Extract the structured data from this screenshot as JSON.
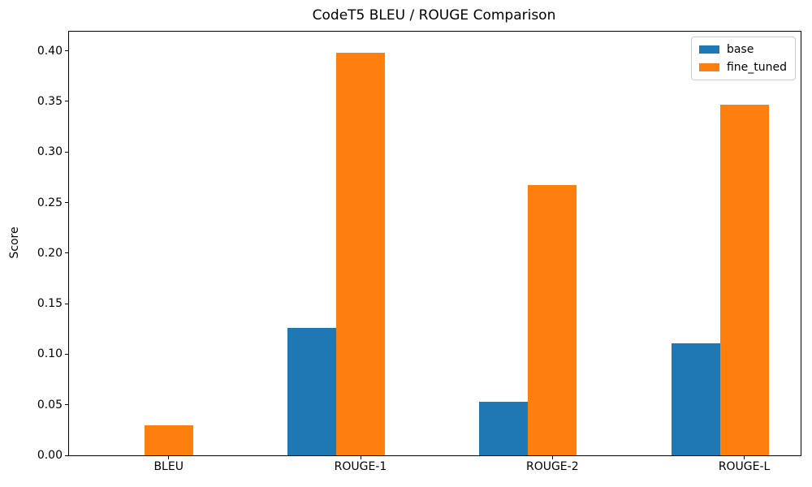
{
  "window": {
    "background": "#ffffff"
  },
  "chart_data": {
    "type": "bar",
    "title": "CodeT5 BLEU / ROUGE Comparison",
    "xlabel": "",
    "ylabel": "Score",
    "categories": [
      "BLEU",
      "ROUGE-1",
      "ROUGE-2",
      "ROUGE-L"
    ],
    "series": [
      {
        "name": "base",
        "color": "#1f77b4",
        "values": [
          0.0,
          0.126,
          0.053,
          0.111
        ]
      },
      {
        "name": "fine_tuned",
        "color": "#ff7f0e",
        "values": [
          0.03,
          0.398,
          0.267,
          0.347
        ]
      }
    ],
    "ylim": [
      0,
      0.419
    ],
    "yticks": [
      0.0,
      0.05,
      0.1,
      0.15,
      0.2,
      0.25,
      0.3,
      0.35,
      0.4
    ],
    "ytick_decimals": 2,
    "grid": false,
    "legend_position": "upper-right",
    "axis_color": "#000000",
    "text_color": "#000000",
    "legend_border_color": "#cccccc"
  }
}
